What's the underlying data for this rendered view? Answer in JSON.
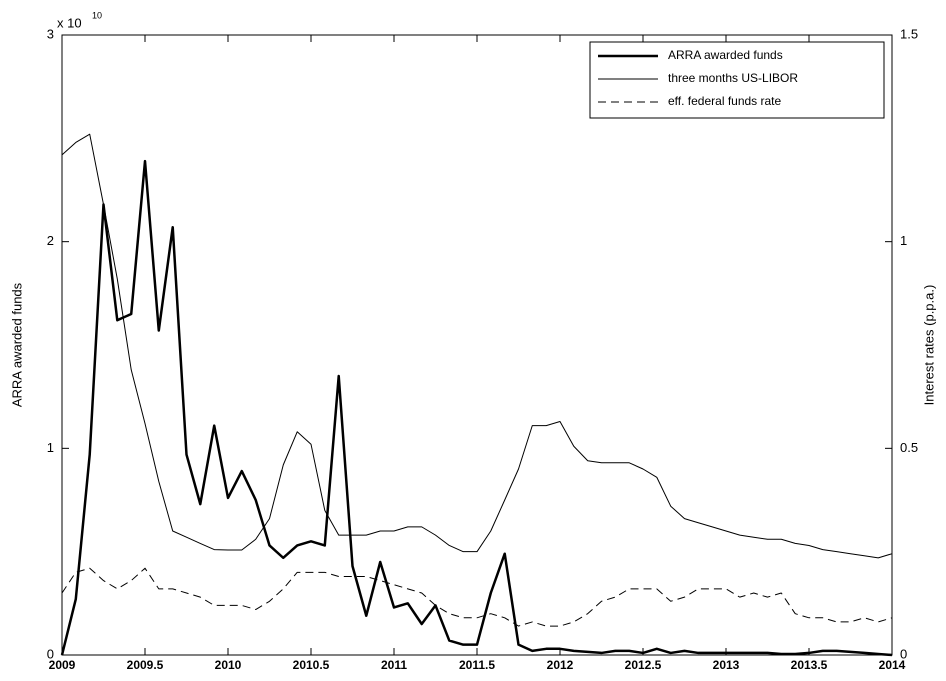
{
  "chart_data": {
    "type": "line",
    "y_label": "ARRA awarded funds",
    "y2_label": "Interest rates (p.p.a.)",
    "y_multiplier": {
      "base": "x 10",
      "exponent": "10"
    },
    "x": [
      2009,
      2009.083,
      2009.167,
      2009.25,
      2009.333,
      2009.417,
      2009.5,
      2009.583,
      2009.667,
      2009.75,
      2009.833,
      2009.917,
      2010,
      2010.083,
      2010.167,
      2010.25,
      2010.333,
      2010.417,
      2010.5,
      2010.583,
      2010.667,
      2010.75,
      2010.833,
      2010.917,
      2011,
      2011.083,
      2011.167,
      2011.25,
      2011.333,
      2011.417,
      2011.5,
      2011.583,
      2011.667,
      2011.75,
      2011.833,
      2011.917,
      2012,
      2012.083,
      2012.167,
      2012.25,
      2012.333,
      2012.417,
      2012.5,
      2012.583,
      2012.667,
      2012.75,
      2012.833,
      2012.917,
      2013,
      2013.083,
      2013.167,
      2013.25,
      2013.333,
      2013.417,
      2013.5,
      2013.583,
      2013.667,
      2013.75,
      2013.833,
      2013.917,
      2014
    ],
    "series": [
      {
        "name": "ARRA awarded funds",
        "color": "#000000",
        "width": 2.5,
        "dash": "none",
        "axis": "y",
        "values": [
          0,
          0.27,
          0.97,
          2.18,
          1.62,
          1.65,
          2.39,
          1.57,
          2.07,
          0.97,
          0.73,
          1.11,
          0.76,
          0.89,
          0.75,
          0.53,
          0.47,
          0.53,
          0.55,
          0.53,
          1.35,
          0.43,
          0.19,
          0.45,
          0.23,
          0.25,
          0.15,
          0.24,
          0.07,
          0.05,
          0.05,
          0.3,
          0.49,
          0.05,
          0.02,
          0.03,
          0.03,
          0.02,
          0.015,
          0.01,
          0.02,
          0.02,
          0.01,
          0.03,
          0.01,
          0.02,
          0.01,
          0.01,
          0.01,
          0.01,
          0.01,
          0.01,
          0.005,
          0.005,
          0.01,
          0.02,
          0.02,
          0.015,
          0.01,
          0.005,
          0
        ]
      },
      {
        "name": "three months US-LIBOR",
        "color": "#000000",
        "width": 1,
        "dash": "none",
        "axis": "y2",
        "values": [
          1.21,
          1.24,
          1.26,
          1.09,
          0.91,
          0.69,
          0.56,
          0.42,
          0.3,
          0.285,
          0.27,
          0.255,
          0.254,
          0.254,
          0.28,
          0.33,
          0.46,
          0.54,
          0.51,
          0.35,
          0.29,
          0.29,
          0.29,
          0.3,
          0.3,
          0.31,
          0.31,
          0.29,
          0.265,
          0.25,
          0.25,
          0.3,
          0.375,
          0.45,
          0.555,
          0.555,
          0.565,
          0.505,
          0.47,
          0.465,
          0.465,
          0.465,
          0.45,
          0.43,
          0.36,
          0.33,
          0.32,
          0.31,
          0.3,
          0.29,
          0.285,
          0.28,
          0.28,
          0.27,
          0.265,
          0.255,
          0.25,
          0.245,
          0.24,
          0.235,
          0.245
        ]
      },
      {
        "name": "eff. federal funds rate",
        "color": "#000000",
        "width": 1,
        "dash": "8,5",
        "axis": "y2",
        "values": [
          0.15,
          0.2,
          0.21,
          0.18,
          0.16,
          0.18,
          0.21,
          0.16,
          0.16,
          0.15,
          0.14,
          0.12,
          0.12,
          0.12,
          0.11,
          0.13,
          0.16,
          0.2,
          0.2,
          0.2,
          0.19,
          0.19,
          0.19,
          0.18,
          0.17,
          0.16,
          0.15,
          0.12,
          0.1,
          0.09,
          0.09,
          0.1,
          0.09,
          0.07,
          0.08,
          0.07,
          0.07,
          0.08,
          0.1,
          0.13,
          0.14,
          0.16,
          0.16,
          0.16,
          0.13,
          0.14,
          0.16,
          0.16,
          0.16,
          0.14,
          0.15,
          0.14,
          0.15,
          0.1,
          0.09,
          0.09,
          0.08,
          0.08,
          0.09,
          0.08,
          0.09
        ]
      }
    ],
    "xlim": [
      2009,
      2014
    ],
    "xticks": [
      2009,
      2009.5,
      2010,
      2010.5,
      2011,
      2011.5,
      2012,
      2012.5,
      2013,
      2013.5,
      2014
    ],
    "ylim": [
      0,
      3
    ],
    "yticks": [
      0,
      1,
      2,
      3
    ],
    "y2lim": [
      0,
      1.5
    ],
    "y2ticks": [
      0,
      0.5,
      1,
      1.5
    ],
    "grid": false,
    "legend": "top-right"
  }
}
